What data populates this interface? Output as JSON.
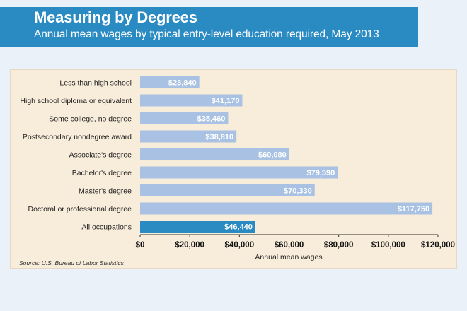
{
  "title": "Measuring by Degrees",
  "subtitle": "Annual mean wages by typical entry-level education required, May 2013",
  "source": "Source: U.S. Bureau of Labor Statistics",
  "colors": {
    "banner": "#2a8ac2",
    "bar": "#a9c2e3",
    "highlight_bar": "#2a8ac2",
    "panel": "#f8ecda",
    "page": "#eaf1f8"
  },
  "chart_data": {
    "type": "bar",
    "orientation": "horizontal",
    "categories": [
      "Less than high school",
      "High school diploma or equivalent",
      "Some college, no degree",
      "Postsecondary nondegree award",
      "Associate's degree",
      "Bachelor's degree",
      "Master's degree",
      "Doctoral or professional degree",
      "All occupations"
    ],
    "values": [
      23840,
      41170,
      35460,
      38810,
      60080,
      79590,
      70330,
      117750,
      46440
    ],
    "value_labels": [
      "$23,840",
      "$41,170",
      "$35,460",
      "$38,810",
      "$60,080",
      "$79,590",
      "$70,330",
      "$117,750",
      "$46,440"
    ],
    "highlight_category": "All occupations",
    "xlabel": "Annual mean wages",
    "ylabel": "",
    "xlim": [
      0,
      120000
    ],
    "xticks": [
      0,
      20000,
      40000,
      60000,
      80000,
      100000,
      120000
    ],
    "xtick_labels": [
      "$0",
      "$20,000",
      "$40,000",
      "$60,000",
      "$80,000",
      "$100,000",
      "$120,000"
    ],
    "grid": false,
    "legend": "none"
  }
}
